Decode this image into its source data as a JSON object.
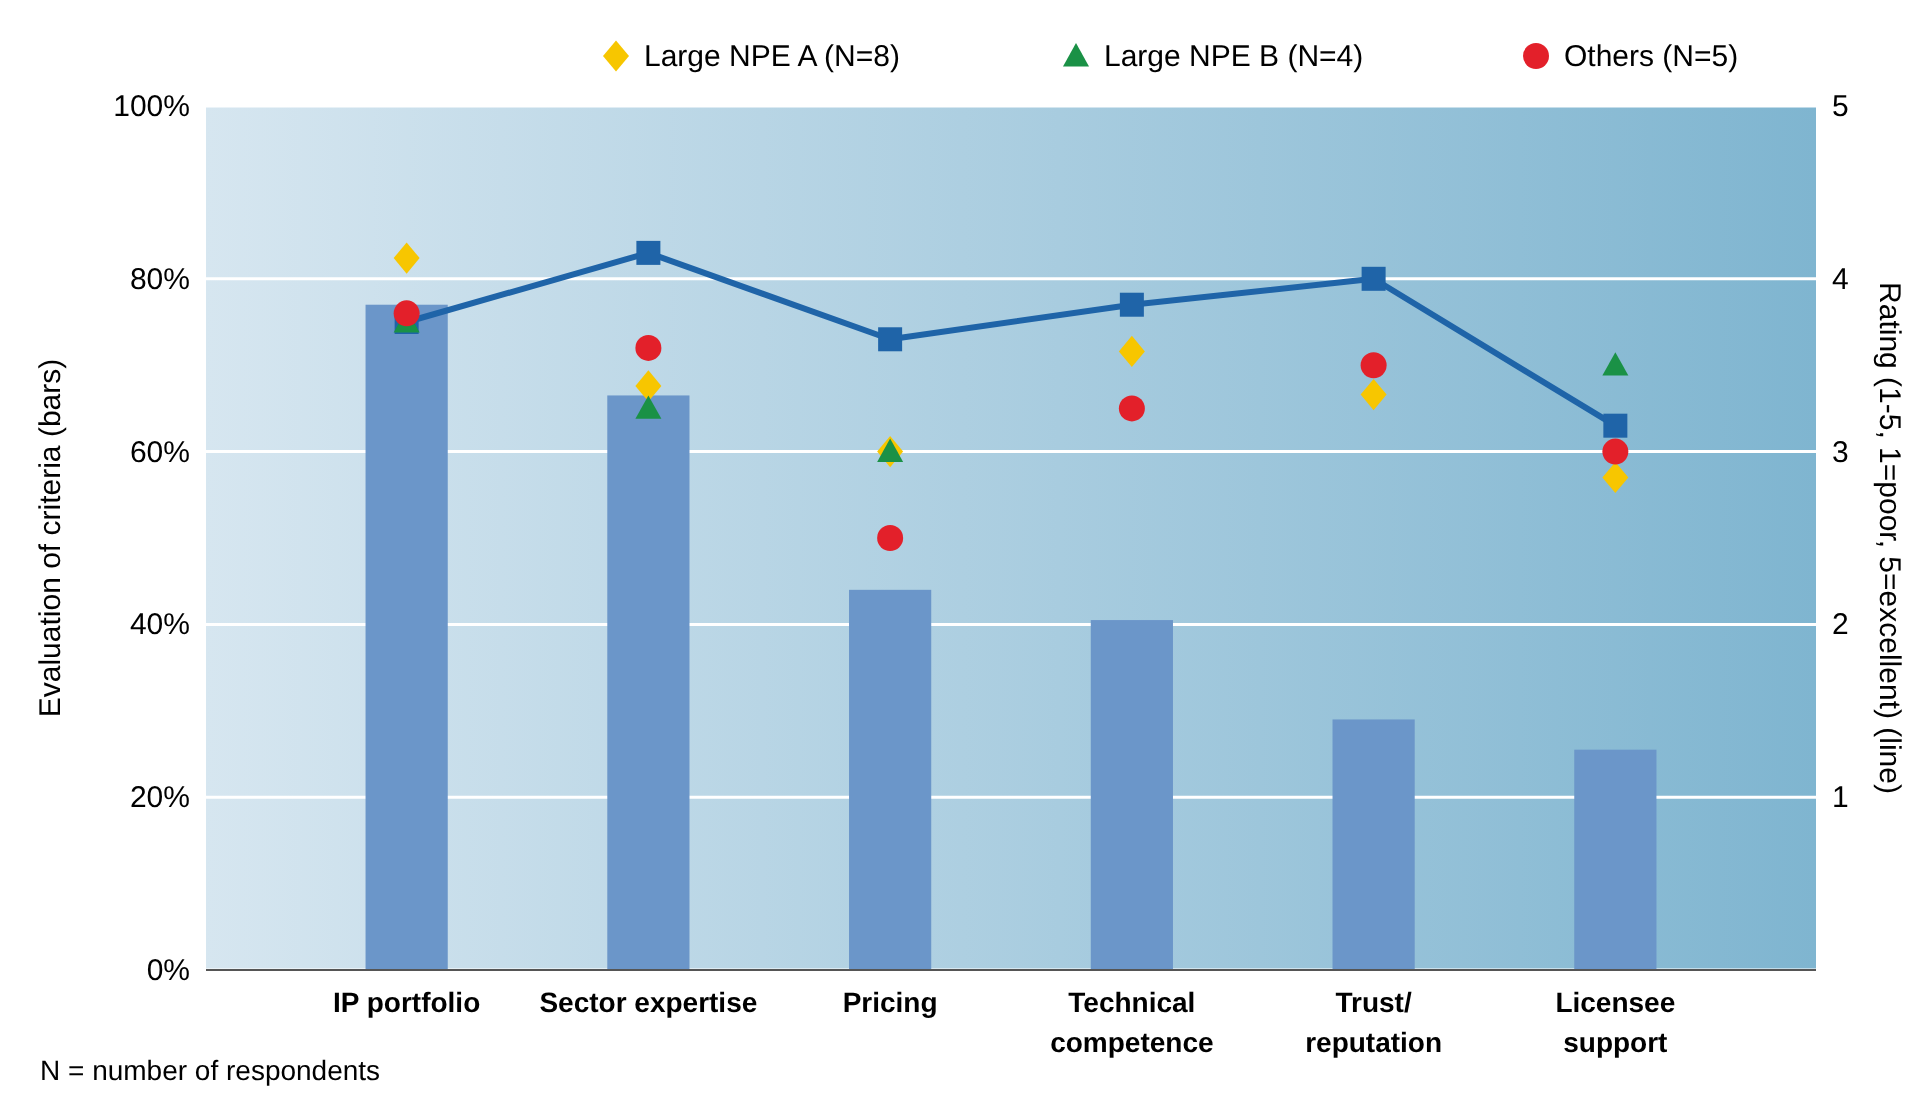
{
  "chart_data": {
    "type": "bar",
    "categories": [
      "IP portfolio",
      "Sector expertise",
      "Pricing",
      "Technical\ncompetence",
      "Trust/\nreputation",
      "Licensee\nsupport"
    ],
    "ylabel": "Evaluation of criteria (bars)",
    "y2label": "Rating (1-5, 1=poor, 5=excellent) (line)",
    "ylim": [
      0,
      100
    ],
    "yticks": [
      {
        "value": 0,
        "label": "0%"
      },
      {
        "value": 20,
        "label": "20%"
      },
      {
        "value": 40,
        "label": "40%"
      },
      {
        "value": 60,
        "label": "60%"
      },
      {
        "value": 80,
        "label": "80%"
      },
      {
        "value": 100,
        "label": "100%"
      }
    ],
    "y2lim": [
      0,
      5
    ],
    "y2ticks": [
      1,
      2,
      3,
      4,
      5
    ],
    "grid": "y",
    "legend": "top",
    "series": [
      {
        "color": "#6b96c9",
        "values": [
          77,
          66.5,
          44,
          40.5,
          29,
          25.5
        ]
      },
      {
        "type": "line",
        "axis": "y2",
        "color": "#1f64a8",
        "marker": "square",
        "values": [
          3.75,
          4.15,
          3.65,
          3.85,
          4.0,
          3.15
        ]
      },
      {
        "type": "scatter",
        "axis": "y2",
        "name": "Large NPE A (N=8)",
        "color": "#f7c600",
        "marker": "diamond",
        "values": [
          4.12,
          3.38,
          3.0,
          3.58,
          3.33,
          2.85
        ]
      },
      {
        "type": "scatter",
        "axis": "y2",
        "name": "Large NPE B (N=4)",
        "color": "#1a9146",
        "marker": "triangle",
        "values": [
          3.75,
          3.25,
          3.0,
          null,
          null,
          3.5
        ]
      },
      {
        "type": "scatter",
        "axis": "y2",
        "name": "Others (N=5)",
        "color": "#e3202a",
        "marker": "circle",
        "values": [
          3.8,
          3.6,
          2.5,
          3.25,
          3.5,
          3.0
        ]
      }
    ],
    "annotations": [
      "N = number of respondents"
    ]
  }
}
